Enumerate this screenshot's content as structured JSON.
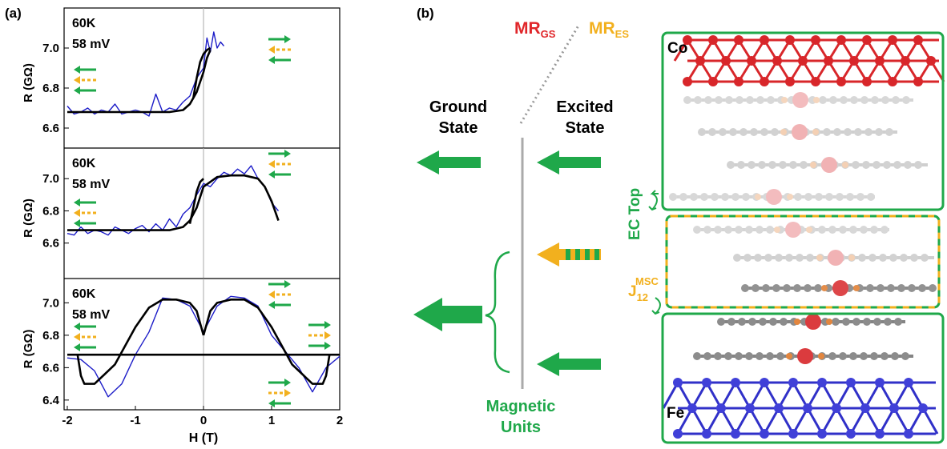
{
  "panel_labels": [
    "(a)",
    "(b)"
  ],
  "chart_data": [
    {
      "type": "line",
      "annotations": [
        "60K",
        "58 mV"
      ],
      "ylabel": "R (GΩ)",
      "xlim": [
        -2,
        2
      ],
      "ylim": [
        6.5,
        7.2
      ],
      "yticks": [
        6.6,
        6.8,
        {
          "value": 7,
          "label": "7.0"
        }
      ],
      "vline": 0,
      "series": [
        {
          "color": "#1c1cc8",
          "x": [
            -2,
            -1.9,
            -1.8,
            -1.7,
            -1.6,
            -1.5,
            -1.4,
            -1.3,
            -1.2,
            -1.1,
            -1.0,
            -0.9,
            -0.8,
            -0.7,
            -0.6,
            -0.5,
            -0.4,
            -0.3,
            -0.2,
            -0.1,
            0,
            0.05,
            0.1,
            0.15,
            0.2,
            0.25,
            0.3
          ],
          "values": [
            6.71,
            6.67,
            6.68,
            6.7,
            6.67,
            6.69,
            6.68,
            6.72,
            6.67,
            6.68,
            6.69,
            6.68,
            6.66,
            6.77,
            6.68,
            6.7,
            6.69,
            6.73,
            6.76,
            6.85,
            6.9,
            7.05,
            6.98,
            7.08,
            7.0,
            7.03,
            7.01
          ]
        },
        {
          "color": "#000000",
          "x": [
            -2,
            -1.5,
            -1,
            -0.5,
            -0.3,
            -0.2,
            -0.1,
            0,
            0.05,
            0.1
          ],
          "values": [
            6.68,
            6.68,
            6.68,
            6.68,
            6.69,
            6.72,
            6.78,
            6.88,
            6.95,
            6.99
          ]
        },
        {
          "color": "#000000",
          "x": [
            -0.15,
            -0.1,
            -0.05,
            0,
            0.05,
            0.1
          ],
          "values": [
            6.75,
            6.85,
            6.93,
            6.97,
            6.99,
            7.0
          ]
        }
      ]
    },
    {
      "type": "line",
      "annotations": [
        "60K",
        "58 mV"
      ],
      "ylabel": "R (GΩ)",
      "xlim": [
        -2,
        2
      ],
      "ylim": [
        6.38,
        7.19
      ],
      "yticks": [
        6.6,
        6.8,
        {
          "value": 7,
          "label": "7.0"
        }
      ],
      "vline": 0,
      "series": [
        {
          "color": "#1c1cc8",
          "x": [
            -2,
            -1.9,
            -1.8,
            -1.7,
            -1.6,
            -1.5,
            -1.4,
            -1.3,
            -1.2,
            -1.1,
            -1.0,
            -0.9,
            -0.8,
            -0.7,
            -0.6,
            -0.5,
            -0.4,
            -0.3,
            -0.2,
            -0.1,
            0,
            0.1,
            0.2,
            0.3,
            0.4,
            0.5,
            0.6,
            0.7,
            0.8,
            0.9,
            1.0,
            1.1
          ],
          "values": [
            6.66,
            6.65,
            6.7,
            6.66,
            6.68,
            6.67,
            6.65,
            6.7,
            6.68,
            6.66,
            6.69,
            6.71,
            6.67,
            6.72,
            6.68,
            6.75,
            6.7,
            6.78,
            6.82,
            6.9,
            6.97,
            6.95,
            7.0,
            7.04,
            7.02,
            7.06,
            7.03,
            7.08,
            7.0,
            6.95,
            6.85,
            6.8
          ]
        },
        {
          "color": "#000000",
          "x": [
            -2,
            -1,
            -0.5,
            -0.3,
            -0.2,
            -0.1,
            0,
            0.2,
            0.4,
            0.6,
            0.8,
            0.9,
            1.0,
            1.1
          ],
          "values": [
            6.68,
            6.68,
            6.68,
            6.7,
            6.74,
            6.82,
            6.95,
            7.01,
            7.02,
            7.02,
            7.0,
            6.95,
            6.86,
            6.74
          ]
        },
        {
          "color": "#000000",
          "x": [
            -0.2,
            -0.15,
            -0.1,
            -0.05,
            0
          ],
          "values": [
            6.72,
            6.82,
            6.92,
            6.98,
            7.0
          ]
        }
      ]
    },
    {
      "type": "line",
      "annotations": [
        "60K",
        "58 mV"
      ],
      "ylabel": "R (GΩ)",
      "xlabel": "H (T)",
      "xlim": [
        -2,
        2
      ],
      "ylim": [
        6.34,
        7.15
      ],
      "xticks": [
        -2,
        -1,
        0,
        1,
        2
      ],
      "yticks": [
        6.4,
        6.6,
        6.8,
        {
          "value": 7,
          "label": "7.0"
        }
      ],
      "vline": 0,
      "series": [
        {
          "color": "#1c1cc8",
          "x": [
            -2,
            -1.8,
            -1.6,
            -1.4,
            -1.2,
            -1.0,
            -0.8,
            -0.6,
            -0.4,
            -0.2,
            0,
            0.2,
            0.4,
            0.6,
            0.8,
            1.0,
            1.2,
            1.4,
            1.6,
            1.8,
            2.0
          ],
          "values": [
            6.66,
            6.65,
            6.58,
            6.42,
            6.5,
            6.68,
            6.82,
            7.03,
            7.02,
            6.98,
            6.82,
            6.98,
            7.04,
            7.03,
            6.98,
            6.8,
            6.7,
            6.6,
            6.45,
            6.6,
            6.67
          ]
        },
        {
          "color": "#000000",
          "x": [
            -2,
            2
          ],
          "values": [
            6.68,
            6.68
          ]
        },
        {
          "color": "#000000",
          "x": [
            -1.85,
            -1.8,
            -1.75,
            -1.6,
            -1.3,
            -1.0,
            -0.8,
            -0.6,
            -0.4,
            -0.2,
            -0.1,
            0
          ],
          "values": [
            6.68,
            6.55,
            6.5,
            6.5,
            6.62,
            6.85,
            6.97,
            7.02,
            7.02,
            7.0,
            6.95,
            6.8
          ]
        },
        {
          "color": "#000000",
          "x": [
            0,
            0.1,
            0.2,
            0.4,
            0.6,
            0.8,
            1.0,
            1.3,
            1.6,
            1.75,
            1.8,
            1.85
          ],
          "values": [
            6.8,
            6.95,
            7.0,
            7.02,
            7.02,
            6.97,
            6.85,
            6.62,
            6.5,
            6.5,
            6.55,
            6.68
          ]
        }
      ]
    }
  ],
  "diagram": {
    "mr_gs": {
      "main": "MR",
      "sub": "GS"
    },
    "mr_es": {
      "main": "MR",
      "sub": "ES"
    },
    "ground_state": [
      "Ground",
      "State"
    ],
    "excited_state": [
      "Excited",
      "State"
    ],
    "magnetic_units": [
      "Magnetic",
      "Units"
    ],
    "co": "Co",
    "fe": "Fe",
    "ec_top": "EC Top",
    "j12": {
      "main": "J",
      "sub": "12",
      "sup": "MSC"
    }
  }
}
